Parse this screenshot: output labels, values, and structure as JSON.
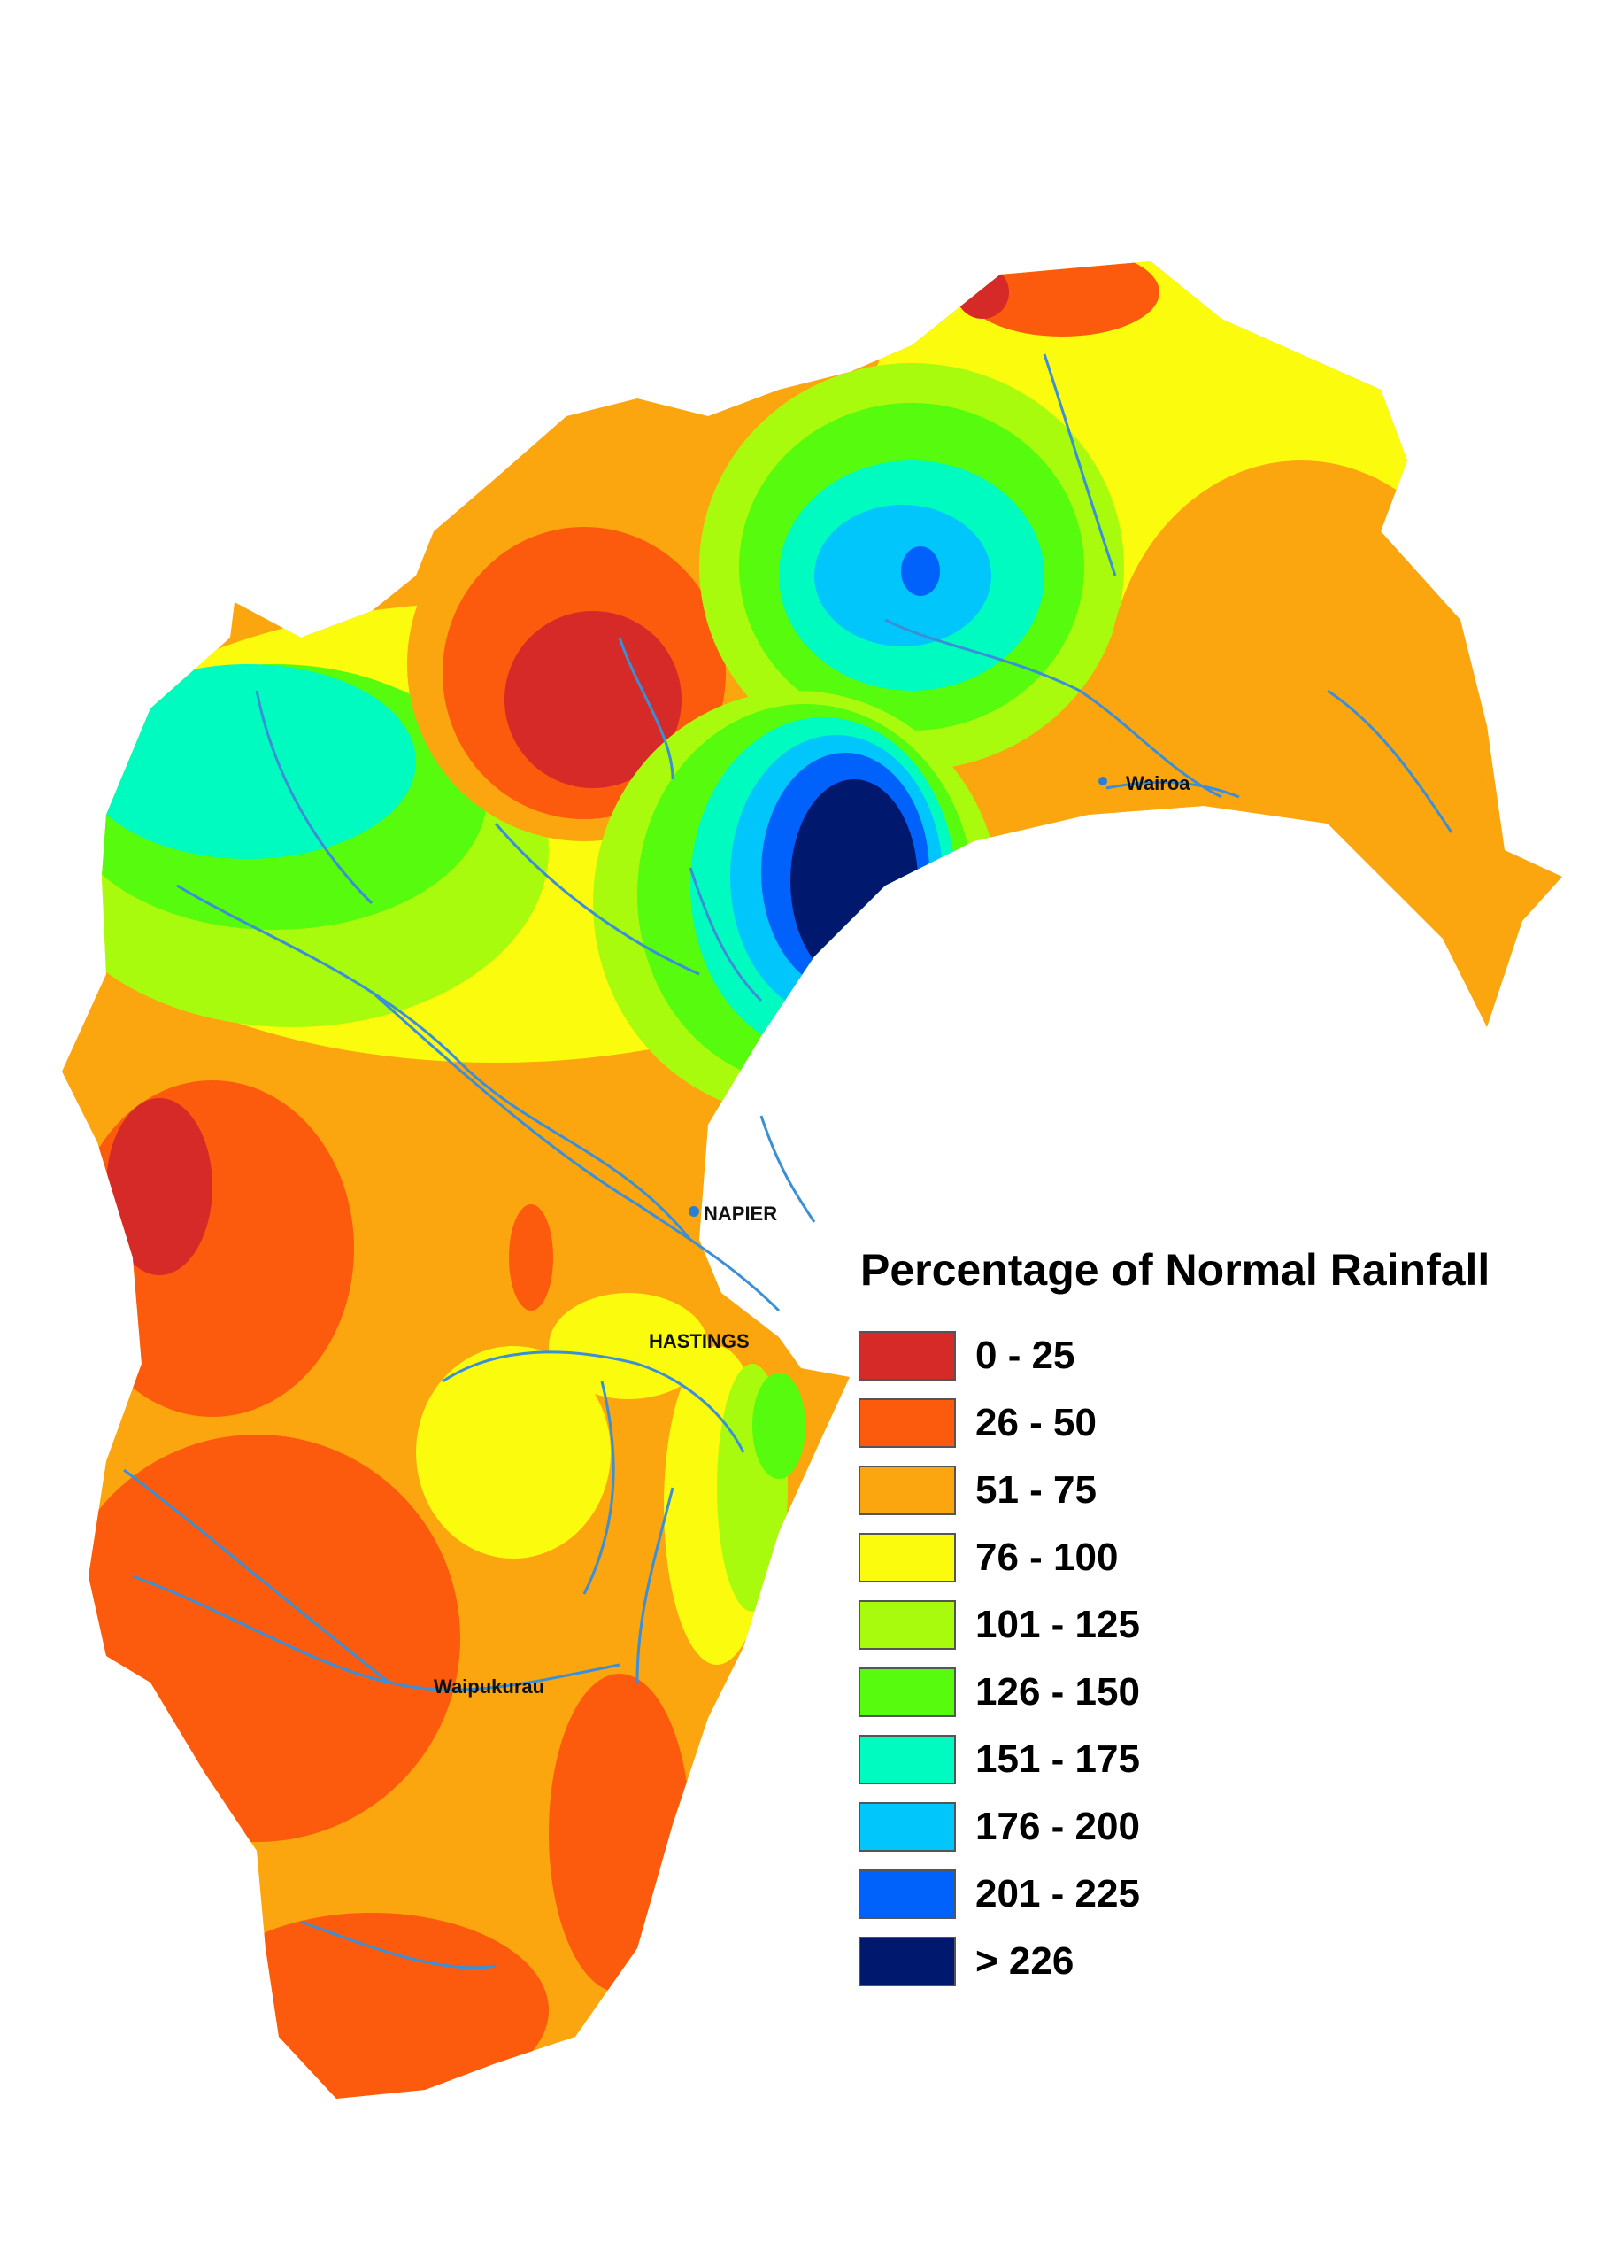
{
  "map": {
    "towns": [
      {
        "id": "wairoa",
        "label": "Wairoa"
      },
      {
        "id": "napier",
        "label": "NAPIER"
      },
      {
        "id": "hastings",
        "label": "HASTINGS"
      },
      {
        "id": "waipukurau",
        "label": "Waipukurau"
      }
    ],
    "colors": {
      "river": "#3b8fd6",
      "town_marker": "#2a7fd0"
    }
  },
  "legend": {
    "title": "Percentage of Normal Rainfall",
    "classes": [
      {
        "label": "0 - 25",
        "color": "#d52a27"
      },
      {
        "label": "26 - 50",
        "color": "#fc5a0c"
      },
      {
        "label": "51 - 75",
        "color": "#fba50f"
      },
      {
        "label": "76 - 100",
        "color": "#fbfb0d"
      },
      {
        "label": "101 - 125",
        "color": "#a9fb0d"
      },
      {
        "label": "126 - 150",
        "color": "#56fb0d"
      },
      {
        "label": "151 - 175",
        "color": "#00fbc0"
      },
      {
        "label": "176 - 200",
        "color": "#00c6fb"
      },
      {
        "label": "201 - 225",
        "color": "#0061fb"
      },
      {
        "label": "> 226",
        "color": "#00196f"
      }
    ]
  }
}
